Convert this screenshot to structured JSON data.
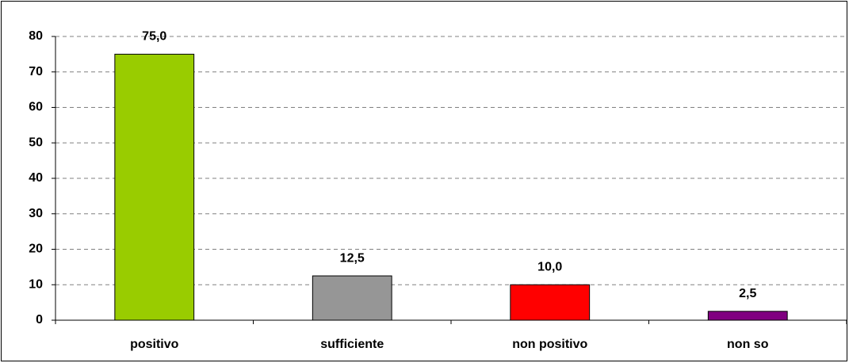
{
  "chart_data": {
    "type": "bar",
    "categories": [
      "positivo",
      "sufficiente",
      "non positivo",
      "non so"
    ],
    "values": [
      75,
      12.5,
      10,
      2.5
    ],
    "value_labels": [
      "75,0",
      "12,5",
      "10,0",
      "2,5"
    ],
    "colors": [
      "#99cc00",
      "#969696",
      "#ff0000",
      "#800080"
    ],
    "ylim": [
      0,
      80
    ],
    "yticks": [
      0,
      10,
      20,
      30,
      40,
      50,
      60,
      70,
      80
    ],
    "grid": true
  }
}
